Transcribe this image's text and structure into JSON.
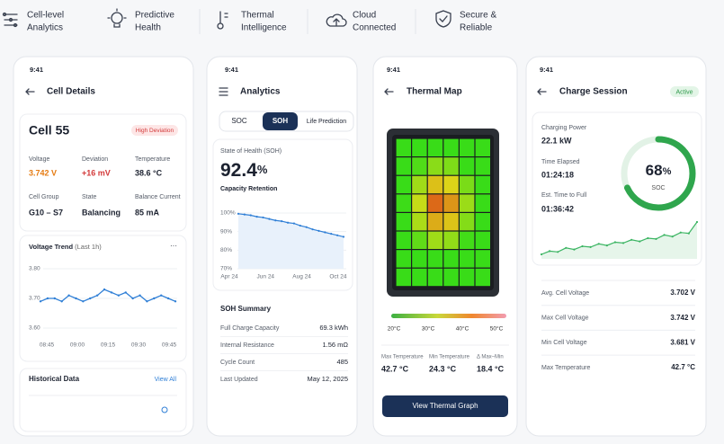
{
  "features": [
    {
      "lines": [
        "Cell-level",
        "Analytics"
      ]
    },
    {
      "lines": [
        "Predictive",
        "Health"
      ]
    },
    {
      "lines": [
        "Thermal",
        "Intelligence"
      ]
    },
    {
      "lines": [
        "Cloud",
        "Connected"
      ]
    },
    {
      "lines": [
        "Secure &",
        "Reliable"
      ]
    }
  ],
  "cell_details": {
    "status_time": "9:41",
    "title": "Cell Details",
    "cell": "Cell 55",
    "badge": "High Deviation",
    "metrics": [
      {
        "label": "Voltage",
        "value": "3.742 V"
      },
      {
        "label": "Deviation",
        "value": "+16 mV"
      },
      {
        "label": "Temperature",
        "value": "38.6 °C"
      },
      {
        "label": "Cell Group",
        "value": "G10 – S7"
      },
      {
        "label": "State",
        "value": "Balancing"
      },
      {
        "label": "Balance Current",
        "value": "85 mA"
      }
    ],
    "trend": {
      "title": "Voltage Trend",
      "subtitle": "(Last 1h)",
      "more": "···",
      "categories": [
        "08:45",
        "09:00",
        "09:15",
        "09:30",
        "09:45"
      ],
      "ylim": [
        3.6,
        3.8
      ],
      "yticks": [
        {
          "value": 3.8,
          "label": "3.80"
        },
        {
          "value": 3.7,
          "label": "3.70"
        },
        {
          "value": 3.6,
          "label": "3.60"
        }
      ],
      "values": [
        3.69,
        3.7,
        3.7,
        3.69,
        3.71,
        3.7,
        3.69,
        3.7,
        3.71,
        3.73,
        3.72,
        3.71,
        3.72,
        3.7,
        3.71,
        3.69,
        3.7,
        3.71,
        3.7,
        3.69
      ],
      "color": "#2f7fd6"
    },
    "history": {
      "title": "Historical Data",
      "link": "View All"
    }
  },
  "analytics": {
    "status_time": "9:41",
    "title": "Analytics",
    "tabs": [
      "SOC",
      "SOH",
      "Life Prediction"
    ],
    "soh_label": "State of Health (SOH)",
    "soh_value": "92.4",
    "soh_unit": "%",
    "soh_caption": "Capacity Retention",
    "chart": {
      "categories": [
        "Apr 24",
        "Jun 24",
        "Aug 24",
        "Oct 24"
      ],
      "ylim": [
        70,
        100
      ],
      "yticks": [
        {
          "value": 100,
          "label": "100%"
        },
        {
          "value": 90,
          "label": "90%"
        },
        {
          "value": 80,
          "label": "80%"
        },
        {
          "value": 70,
          "label": "70%"
        }
      ],
      "values": [
        99.6,
        99.2,
        98.8,
        98.0,
        97.6,
        96.8,
        96.0,
        95.6,
        94.8,
        94.4,
        93.2,
        92.4,
        91.2,
        90.4,
        89.6,
        88.8,
        88.0,
        87.2
      ],
      "color": "#2f7fd6"
    },
    "summary_title": "SOH Summary",
    "summary": [
      {
        "label": "Full Charge Capacity",
        "value": "69.3 kWh"
      },
      {
        "label": "Internal Resistance",
        "value": "1.56 mΩ"
      },
      {
        "label": "Cycle Count",
        "value": "485"
      },
      {
        "label": "Last Updated",
        "value": "May 12, 2025"
      }
    ]
  },
  "thermal": {
    "status_time": "9:41",
    "title": "Thermal Map",
    "scale": [
      "20°C",
      "30°C",
      "40°C",
      "50°C"
    ],
    "stats": [
      {
        "label": "Max Temperature",
        "value": "42.7 °C"
      },
      {
        "label": "Min Temperature",
        "value": "24.3 °C"
      },
      {
        "label": "Δ Max–Min",
        "value": "18.4 °C"
      }
    ],
    "button": "View Thermal Graph"
  },
  "charge": {
    "status_time": "9:41",
    "title": "Charge Session",
    "badge": "Active",
    "info": [
      {
        "label": "Charging Power",
        "value": "22.1 kW"
      },
      {
        "label": "Time Elapsed",
        "value": "01:24:18"
      },
      {
        "label": "Est. Time to Full",
        "value": "01:36:42"
      }
    ],
    "soc_value": 68,
    "soc_unit": "%",
    "soc_label": "SOC",
    "spark": {
      "values": [
        20,
        24,
        23,
        28,
        26,
        30,
        29,
        33,
        31,
        35,
        34,
        38,
        36,
        40,
        39,
        44,
        42,
        47,
        46,
        60
      ],
      "color": "#3cb563"
    },
    "rows": [
      {
        "label": "Avg. Cell Voltage",
        "value": "3.702 V"
      },
      {
        "label": "Max Cell Voltage",
        "value": "3.742 V"
      },
      {
        "label": "Min Cell Voltage",
        "value": "3.681 V"
      },
      {
        "label": "Max Temperature",
        "value": "42.7 °C"
      }
    ]
  }
}
